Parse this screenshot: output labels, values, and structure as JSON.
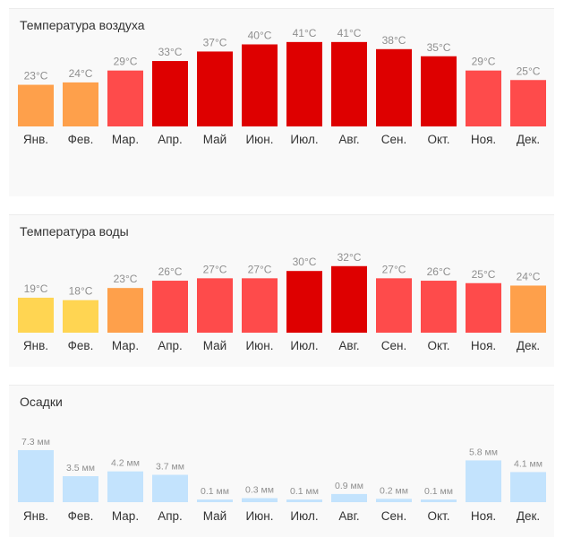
{
  "chart_data": [
    {
      "type": "bar",
      "title": "Температура воздуха",
      "unit": "°C",
      "categories": [
        "Янв.",
        "Фев.",
        "Мар.",
        "Апр.",
        "Май",
        "Июн.",
        "Июл.",
        "Авг.",
        "Сен.",
        "Окт.",
        "Ноя.",
        "Дек."
      ],
      "values": [
        23,
        24,
        29,
        33,
        37,
        40,
        41,
        41,
        38,
        35,
        29,
        25
      ],
      "labels": [
        "23°C",
        "24°C",
        "29°C",
        "33°C",
        "37°C",
        "40°C",
        "41°C",
        "41°C",
        "38°C",
        "35°C",
        "29°C",
        "25°C"
      ],
      "bar_colors": [
        "#fea04b",
        "#fea04b",
        "#fe4b4b",
        "#de0000",
        "#de0000",
        "#de0000",
        "#de0000",
        "#de0000",
        "#de0000",
        "#de0000",
        "#fe4b4b",
        "#fe4b4b"
      ],
      "xlabel": "",
      "ylabel": ""
    },
    {
      "type": "bar",
      "title": "Температура воды",
      "unit": "°C",
      "categories": [
        "Янв.",
        "Фев.",
        "Мар.",
        "Апр.",
        "Май",
        "Июн.",
        "Июл.",
        "Авг.",
        "Сен.",
        "Окт.",
        "Ноя.",
        "Дек."
      ],
      "values": [
        19,
        18,
        23,
        26,
        27,
        27,
        30,
        32,
        27,
        26,
        25,
        24
      ],
      "labels": [
        "19°C",
        "18°C",
        "23°C",
        "26°C",
        "27°C",
        "27°C",
        "30°C",
        "32°C",
        "27°C",
        "26°C",
        "25°C",
        "24°C"
      ],
      "bar_colors": [
        "#ffd552",
        "#ffd552",
        "#fea04b",
        "#fe4b4b",
        "#fe4b4b",
        "#fe4b4b",
        "#de0000",
        "#de0000",
        "#fe4b4b",
        "#fe4b4b",
        "#fe4b4b",
        "#fea04b"
      ],
      "xlabel": "",
      "ylabel": ""
    },
    {
      "type": "bar",
      "title": "Осадки",
      "unit": "мм",
      "categories": [
        "Янв.",
        "Фев.",
        "Мар.",
        "Апр.",
        "Май",
        "Июн.",
        "Июл.",
        "Авг.",
        "Сен.",
        "Окт.",
        "Ноя.",
        "Дек."
      ],
      "values": [
        7.3,
        3.5,
        4.2,
        3.7,
        0.1,
        0.3,
        0.1,
        0.9,
        0.2,
        0.1,
        5.8,
        4.1
      ],
      "labels": [
        "7.3 мм",
        "3.5 мм",
        "4.2 мм",
        "3.7 мм",
        "0.1 мм",
        "0.3 мм",
        "0.1 мм",
        "0.9 мм",
        "0.2 мм",
        "0.1 мм",
        "5.8 мм",
        "4.1 мм"
      ],
      "bar_colors": [
        "#c3e3fd",
        "#c3e3fd",
        "#c3e3fd",
        "#c3e3fd",
        "#c3e3fd",
        "#c3e3fd",
        "#c3e3fd",
        "#c3e3fd",
        "#c3e3fd",
        "#c3e3fd",
        "#c3e3fd",
        "#c3e3fd"
      ],
      "xlabel": "",
      "ylabel": ""
    }
  ]
}
